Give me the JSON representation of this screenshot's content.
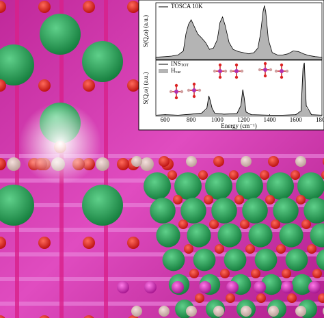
{
  "chart_data": [
    {
      "type": "area",
      "y_label": "S(Q,ω) (a.u.)",
      "legend": "upper left",
      "x": [
        530,
        600,
        650,
        700,
        740,
        760,
        780,
        800,
        820,
        850,
        880,
        910,
        940,
        970,
        1000,
        1020,
        1040,
        1060,
        1090,
        1120,
        1160,
        1200,
        1240,
        1280,
        1310,
        1330,
        1350,
        1360,
        1370,
        1390,
        1420,
        1460,
        1500,
        1540,
        1580,
        1620,
        1660,
        1700,
        1750,
        1800
      ],
      "xlim": [
        530,
        1800
      ],
      "ylim": [
        0,
        1
      ],
      "series": [
        {
          "name": "TOSCA 10K",
          "color": "#000000",
          "fill": "#b4b4b4",
          "values": [
            0.04,
            0.05,
            0.06,
            0.08,
            0.15,
            0.45,
            0.62,
            0.7,
            0.6,
            0.45,
            0.38,
            0.3,
            0.18,
            0.2,
            0.35,
            0.65,
            0.75,
            0.6,
            0.3,
            0.18,
            0.14,
            0.12,
            0.1,
            0.12,
            0.2,
            0.45,
            0.85,
            0.95,
            0.85,
            0.35,
            0.12,
            0.08,
            0.08,
            0.1,
            0.15,
            0.14,
            0.1,
            0.07,
            0.05,
            0.04
          ]
        }
      ]
    },
    {
      "type": "area",
      "y_label": "S(Q,ω) (a.u.)",
      "x_label": "Energy (cm⁻¹)",
      "legend": "upper left",
      "x": [
        530,
        600,
        700,
        800,
        880,
        920,
        935,
        945,
        960,
        980,
        1050,
        1150,
        1180,
        1195,
        1205,
        1220,
        1260,
        1400,
        1500,
        1600,
        1640,
        1655,
        1665,
        1680,
        1720,
        1800
      ],
      "xlim": [
        530,
        1800
      ],
      "ylim": [
        0,
        1.05
      ],
      "xticks": [
        600,
        800,
        1000,
        1200,
        1400,
        1600,
        1800
      ],
      "series": [
        {
          "name": "H",
          "name_sub": "vac",
          "color": "#a8a8a8",
          "fill": "#b4b4b4",
          "values": [
            0.01,
            0.02,
            0.01,
            0.03,
            0.05,
            0.12,
            0.34,
            0.27,
            0.12,
            0.04,
            0.03,
            0.04,
            0.17,
            0.46,
            0.3,
            0.06,
            0.02,
            0.01,
            0.01,
            0.02,
            0.08,
            0.85,
            0.95,
            0.15,
            0.02,
            0.01
          ]
        },
        {
          "name": "INS",
          "name_sub": "TOT",
          "color": "#000000",
          "values": [
            0.02,
            0.03,
            0.02,
            0.04,
            0.06,
            0.15,
            0.38,
            0.3,
            0.15,
            0.06,
            0.04,
            0.05,
            0.2,
            0.5,
            0.35,
            0.08,
            0.03,
            0.02,
            0.02,
            0.03,
            0.1,
            0.9,
            1.0,
            0.2,
            0.03,
            0.02
          ]
        }
      ]
    }
  ]
}
